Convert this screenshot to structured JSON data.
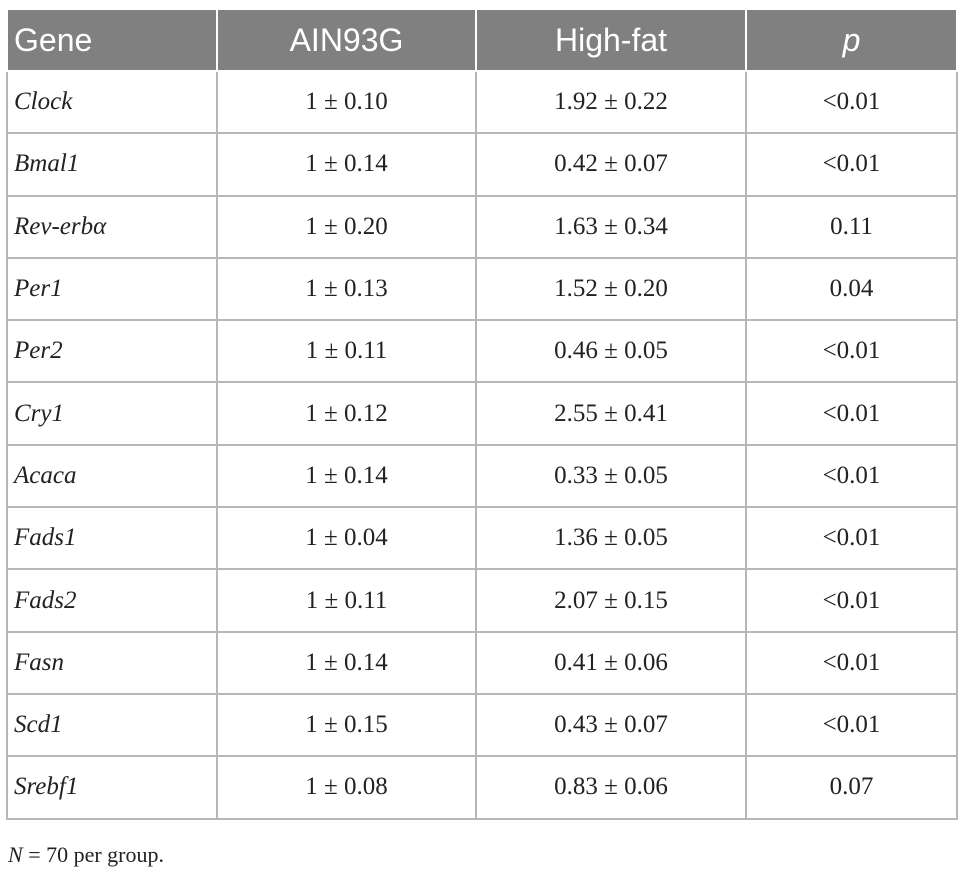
{
  "table": {
    "headers": [
      "Gene",
      "AIN93G",
      "High-fat",
      "p"
    ],
    "rows": [
      {
        "gene": "Clock",
        "ain93g": "1 ± 0.10",
        "high_fat": "1.92 ± 0.22",
        "p": "<0.01"
      },
      {
        "gene": "Bmal1",
        "ain93g": "1 ± 0.14",
        "high_fat": "0.42 ± 0.07",
        "p": "<0.01"
      },
      {
        "gene": "Rev-erbα",
        "ain93g": "1 ± 0.20",
        "high_fat": "1.63 ± 0.34",
        "p": "0.11"
      },
      {
        "gene": "Per1",
        "ain93g": "1 ± 0.13",
        "high_fat": "1.52 ± 0.20",
        "p": "0.04"
      },
      {
        "gene": "Per2",
        "ain93g": "1 ± 0.11",
        "high_fat": "0.46 ± 0.05",
        "p": "<0.01"
      },
      {
        "gene": "Cry1",
        "ain93g": "1 ± 0.12",
        "high_fat": "2.55 ± 0.41",
        "p": "<0.01"
      },
      {
        "gene": "Acaca",
        "ain93g": "1 ± 0.14",
        "high_fat": "0.33 ± 0.05",
        "p": "<0.01"
      },
      {
        "gene": "Fads1",
        "ain93g": "1 ± 0.04",
        "high_fat": "1.36 ± 0.05",
        "p": "<0.01"
      },
      {
        "gene": "Fads2",
        "ain93g": "1 ± 0.11",
        "high_fat": "2.07 ± 0.15",
        "p": "<0.01"
      },
      {
        "gene": "Fasn",
        "ain93g": "1 ± 0.14",
        "high_fat": "0.41 ± 0.06",
        "p": "<0.01"
      },
      {
        "gene": "Scd1",
        "ain93g": "1 ± 0.15",
        "high_fat": "0.43 ± 0.07",
        "p": "<0.01"
      },
      {
        "gene": "Srebf1",
        "ain93g": "1 ± 0.08",
        "high_fat": "0.83 ± 0.06",
        "p": "0.07"
      }
    ]
  },
  "footnote": {
    "n_symbol": "N",
    "text": " = 70 per group."
  },
  "colors": {
    "header_bg": "#808080",
    "header_text": "#ffffff",
    "grid": "#b7b7b7"
  }
}
